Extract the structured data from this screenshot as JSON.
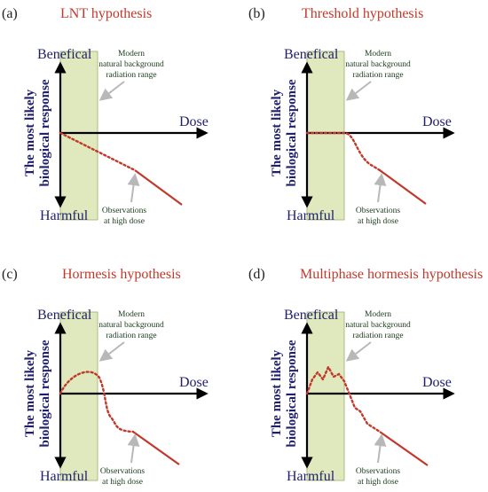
{
  "panels": [
    {
      "letter": "(a)",
      "title": "LNT hypothesis",
      "benefical": "Benefical",
      "harmful": "Harmful",
      "dose": "Dose",
      "ylabel": [
        "The most likely",
        "biological response"
      ],
      "background_note": [
        "Modern",
        "natural background",
        "radiation range"
      ],
      "observation_note": [
        "Observations",
        "at high dose"
      ],
      "curve_type": "linear"
    },
    {
      "letter": "(b)",
      "title": "Threshold hypothesis",
      "benefical": "Benefical",
      "harmful": "Harmful",
      "dose": "Dose",
      "ylabel": [
        "The most likely",
        "biological response"
      ],
      "background_note": [
        "Modern",
        "natural background",
        "radiation range"
      ],
      "observation_note": [
        "Observations",
        "at high dose"
      ],
      "curve_type": "threshold"
    },
    {
      "letter": "(c)",
      "title": "Hormesis hypothesis",
      "benefical": "Benefical",
      "harmful": "Harmful",
      "dose": "Dose",
      "ylabel": [
        "The most likely",
        "biological response"
      ],
      "background_note": [
        "Modern",
        "natural background",
        "radiation range"
      ],
      "observation_note": [
        "Observations",
        "at high dose"
      ],
      "curve_type": "hormesis"
    },
    {
      "letter": "(d)",
      "title": "Multiphase hormesis hypothesis",
      "benefical": "Benefical",
      "harmful": "Harmful",
      "dose": "Dose",
      "ylabel": [
        "The most likely",
        "biological response"
      ],
      "background_note": [
        "Modern",
        "natural background",
        "radiation range"
      ],
      "observation_note": [
        "Observations",
        "at high dose"
      ],
      "curve_type": "multiphase"
    }
  ],
  "colors": {
    "axis": "#000000",
    "curve": "#c0392b",
    "title": "#c0392b",
    "label": "#1f1f6e",
    "background_box": "#dfe9bd",
    "background_box_border": "#9ab06a",
    "note_arrow": "#b8b8b8"
  }
}
